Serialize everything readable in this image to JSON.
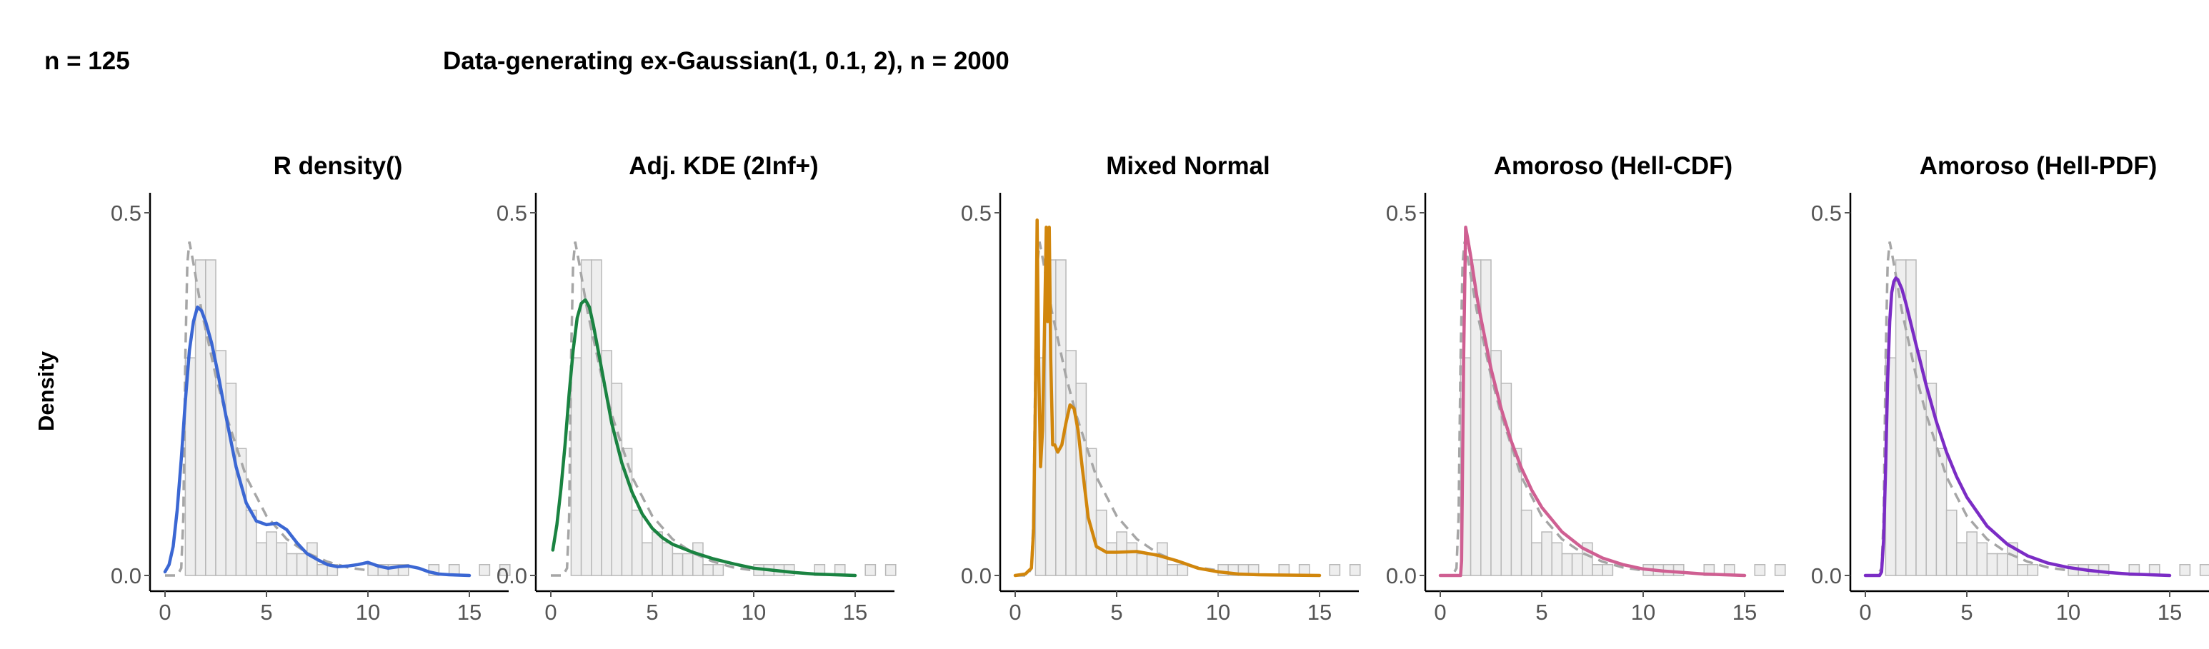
{
  "header": {
    "sample_label": "n = 125",
    "title": "Data-generating ex-Gaussian(1, 0.1, 2), n = 2000"
  },
  "ylabel": "Density",
  "colors": {
    "histogram_fill": "#eeeeee",
    "histogram_stroke": "#b8b8b8",
    "true_density": "#a6a6a6",
    "axis": "#000000"
  },
  "chart_data": {
    "type": "line",
    "xlim": [
      0,
      15
    ],
    "ylim": [
      0,
      0.5
    ],
    "x_ticks": [
      0,
      5,
      10,
      15
    ],
    "y_ticks": [
      0.0,
      0.5
    ],
    "y_tick_labels": [
      "0.0",
      "0.5"
    ],
    "histogram": {
      "bin_width": 0.5,
      "bin_start": 1.0,
      "densities": [
        0.3,
        0.435,
        0.435,
        0.31,
        0.265,
        0.175,
        0.09,
        0.045,
        0.06,
        0.045,
        0.03,
        0.03,
        0.045,
        0.015,
        0.015,
        0,
        0,
        0,
        0.015,
        0.015,
        0.015,
        0.015,
        0,
        0,
        0.015,
        0,
        0.015,
        0,
        0,
        0.015,
        0,
        0.015
      ]
    },
    "true_density": {
      "style": "dashed",
      "points": [
        [
          0,
          0
        ],
        [
          0.3,
          0.0
        ],
        [
          0.6,
          0.0
        ],
        [
          0.8,
          0.01
        ],
        [
          0.9,
          0.08
        ],
        [
          1.0,
          0.3
        ],
        [
          1.1,
          0.43
        ],
        [
          1.2,
          0.46
        ],
        [
          1.4,
          0.43
        ],
        [
          1.8,
          0.365
        ],
        [
          2.5,
          0.275
        ],
        [
          3,
          0.222
        ],
        [
          4,
          0.136
        ],
        [
          5,
          0.082
        ],
        [
          6,
          0.05
        ],
        [
          7,
          0.031
        ],
        [
          8,
          0.019
        ],
        [
          9,
          0.011
        ],
        [
          10,
          0.007
        ]
      ]
    },
    "panels": [
      {
        "title": "R density()",
        "color": "#3b67d3",
        "points": [
          [
            0,
            0.005
          ],
          [
            0.2,
            0.015
          ],
          [
            0.4,
            0.04
          ],
          [
            0.6,
            0.09
          ],
          [
            0.8,
            0.16
          ],
          [
            1.0,
            0.24
          ],
          [
            1.2,
            0.31
          ],
          [
            1.4,
            0.35
          ],
          [
            1.6,
            0.37
          ],
          [
            1.8,
            0.365
          ],
          [
            2.0,
            0.35
          ],
          [
            2.3,
            0.32
          ],
          [
            2.6,
            0.28
          ],
          [
            3.0,
            0.22
          ],
          [
            3.5,
            0.15
          ],
          [
            4.0,
            0.1
          ],
          [
            4.5,
            0.075
          ],
          [
            5.0,
            0.07
          ],
          [
            5.5,
            0.072
          ],
          [
            6.0,
            0.063
          ],
          [
            6.5,
            0.045
          ],
          [
            7.0,
            0.03
          ],
          [
            7.5,
            0.022
          ],
          [
            8.0,
            0.015
          ],
          [
            8.5,
            0.012
          ],
          [
            9.0,
            0.013
          ],
          [
            9.5,
            0.015
          ],
          [
            10.0,
            0.018
          ],
          [
            10.5,
            0.013
          ],
          [
            11.0,
            0.01
          ],
          [
            11.5,
            0.012
          ],
          [
            12.0,
            0.013
          ],
          [
            12.5,
            0.01
          ],
          [
            13.0,
            0.005
          ],
          [
            13.5,
            0.002
          ],
          [
            14.0,
            0.001
          ],
          [
            15.0,
            0.0
          ]
        ]
      },
      {
        "title": "Adj. KDE (2Inf+)",
        "color": "#1a8341",
        "points": [
          [
            0.1,
            0.035
          ],
          [
            0.3,
            0.07
          ],
          [
            0.5,
            0.12
          ],
          [
            0.7,
            0.18
          ],
          [
            0.9,
            0.25
          ],
          [
            1.1,
            0.31
          ],
          [
            1.3,
            0.355
          ],
          [
            1.5,
            0.375
          ],
          [
            1.7,
            0.38
          ],
          [
            1.9,
            0.37
          ],
          [
            2.1,
            0.345
          ],
          [
            2.4,
            0.3
          ],
          [
            2.7,
            0.255
          ],
          [
            3.0,
            0.21
          ],
          [
            3.5,
            0.155
          ],
          [
            4.0,
            0.115
          ],
          [
            4.5,
            0.085
          ],
          [
            5.0,
            0.065
          ],
          [
            5.5,
            0.052
          ],
          [
            6.0,
            0.043
          ],
          [
            7.0,
            0.032
          ],
          [
            8.0,
            0.023
          ],
          [
            9.0,
            0.016
          ],
          [
            10.0,
            0.01
          ],
          [
            11.0,
            0.007
          ],
          [
            12.0,
            0.004
          ],
          [
            13.0,
            0.002
          ],
          [
            14.0,
            0.001
          ],
          [
            15.0,
            0.0
          ]
        ]
      },
      {
        "title": "Mixed Normal",
        "color": "#d1860c",
        "points": [
          [
            0,
            0.0
          ],
          [
            0.5,
            0.002
          ],
          [
            0.8,
            0.01
          ],
          [
            0.9,
            0.06
          ],
          [
            1.0,
            0.25
          ],
          [
            1.08,
            0.49
          ],
          [
            1.15,
            0.3
          ],
          [
            1.25,
            0.15
          ],
          [
            1.35,
            0.2
          ],
          [
            1.45,
            0.35
          ],
          [
            1.53,
            0.48
          ],
          [
            1.6,
            0.35
          ],
          [
            1.68,
            0.48
          ],
          [
            1.75,
            0.3
          ],
          [
            1.85,
            0.18
          ],
          [
            1.95,
            0.18
          ],
          [
            2.1,
            0.17
          ],
          [
            2.3,
            0.18
          ],
          [
            2.5,
            0.21
          ],
          [
            2.7,
            0.235
          ],
          [
            2.9,
            0.23
          ],
          [
            3.1,
            0.2
          ],
          [
            3.3,
            0.15
          ],
          [
            3.6,
            0.08
          ],
          [
            4.0,
            0.04
          ],
          [
            4.5,
            0.032
          ],
          [
            5.0,
            0.032
          ],
          [
            6.0,
            0.033
          ],
          [
            7.0,
            0.028
          ],
          [
            8.0,
            0.02
          ],
          [
            9.0,
            0.01
          ],
          [
            10.0,
            0.005
          ],
          [
            11.0,
            0.002
          ],
          [
            12.0,
            0.001
          ],
          [
            15.0,
            0.0
          ]
        ]
      },
      {
        "title": "Amoroso (Hell-CDF)",
        "color": "#cf5f92",
        "points": [
          [
            0,
            0.0
          ],
          [
            1.0,
            0.0
          ],
          [
            1.05,
            0.02
          ],
          [
            1.15,
            0.3
          ],
          [
            1.25,
            0.48
          ],
          [
            1.35,
            0.465
          ],
          [
            1.5,
            0.44
          ],
          [
            1.8,
            0.385
          ],
          [
            2.0,
            0.355
          ],
          [
            2.5,
            0.285
          ],
          [
            3.0,
            0.23
          ],
          [
            3.5,
            0.185
          ],
          [
            4.0,
            0.148
          ],
          [
            4.5,
            0.118
          ],
          [
            5.0,
            0.094
          ],
          [
            6.0,
            0.06
          ],
          [
            7.0,
            0.038
          ],
          [
            8.0,
            0.024
          ],
          [
            9.0,
            0.015
          ],
          [
            10.0,
            0.009
          ],
          [
            11.0,
            0.006
          ],
          [
            12.0,
            0.004
          ],
          [
            13.0,
            0.002
          ],
          [
            14.0,
            0.001
          ],
          [
            15.0,
            0.0
          ]
        ]
      },
      {
        "title": "Amoroso (Hell-PDF)",
        "color": "#7b2cc5",
        "points": [
          [
            0,
            0.0
          ],
          [
            0.7,
            0.0
          ],
          [
            0.8,
            0.005
          ],
          [
            0.9,
            0.05
          ],
          [
            1.0,
            0.15
          ],
          [
            1.1,
            0.27
          ],
          [
            1.2,
            0.35
          ],
          [
            1.3,
            0.39
          ],
          [
            1.4,
            0.405
          ],
          [
            1.5,
            0.41
          ],
          [
            1.6,
            0.408
          ],
          [
            1.8,
            0.395
          ],
          [
            2.0,
            0.375
          ],
          [
            2.5,
            0.318
          ],
          [
            3.0,
            0.262
          ],
          [
            3.5,
            0.212
          ],
          [
            4.0,
            0.17
          ],
          [
            4.5,
            0.136
          ],
          [
            5.0,
            0.108
          ],
          [
            6.0,
            0.068
          ],
          [
            7.0,
            0.043
          ],
          [
            8.0,
            0.027
          ],
          [
            9.0,
            0.017
          ],
          [
            10.0,
            0.011
          ],
          [
            11.0,
            0.007
          ],
          [
            12.0,
            0.004
          ],
          [
            13.0,
            0.002
          ],
          [
            14.0,
            0.001
          ],
          [
            15.0,
            0.0
          ]
        ]
      }
    ]
  }
}
